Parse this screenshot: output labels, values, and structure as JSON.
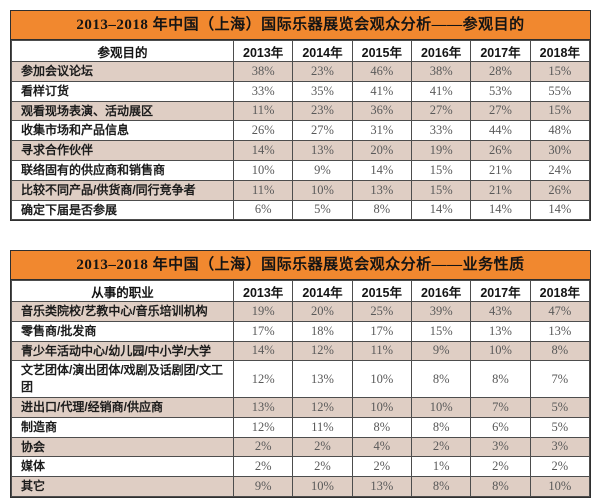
{
  "page": {
    "background": "#ffffff"
  },
  "colors": {
    "title_bar_bg": "#F1882F",
    "stripe_row_bg": "#DFCEC4",
    "grid_border": "#4d4d4d",
    "value_text": "#595959",
    "label_text": "#1c1c1c"
  },
  "chart_data": [
    {
      "type": "table",
      "title": "2013–2018 年中国（上海）国际乐器展览会观众分析——参观目的",
      "row_header": "参观目的",
      "categories": [
        "2013年",
        "2014年",
        "2015年",
        "2016年",
        "2017年",
        "2018年"
      ],
      "unit": "%",
      "series": [
        {
          "name": "参加会议论坛",
          "values": [
            38,
            23,
            46,
            38,
            28,
            15
          ]
        },
        {
          "name": "看样订货",
          "values": [
            33,
            35,
            41,
            41,
            53,
            55
          ]
        },
        {
          "name": "观看现场表演、活动展区",
          "values": [
            11,
            23,
            36,
            27,
            27,
            15
          ]
        },
        {
          "name": "收集市场和产品信息",
          "values": [
            26,
            27,
            31,
            33,
            44,
            48
          ]
        },
        {
          "name": "寻求合作伙伴",
          "values": [
            14,
            13,
            20,
            19,
            26,
            30
          ]
        },
        {
          "name": "联络固有的供应商和销售商",
          "values": [
            10,
            9,
            14,
            15,
            21,
            24
          ]
        },
        {
          "name": "比较不同产品/供货商/同行竞争者",
          "values": [
            11,
            10,
            13,
            15,
            21,
            26
          ]
        },
        {
          "name": "确定下届是否参展",
          "values": [
            6,
            5,
            8,
            14,
            14,
            14
          ]
        }
      ]
    },
    {
      "type": "table",
      "title": "2013–2018 年中国（上海）国际乐器展览会观众分析——业务性质",
      "row_header": "从事的职业",
      "categories": [
        "2013年",
        "2014年",
        "2015年",
        "2016年",
        "2017年",
        "2018年"
      ],
      "unit": "%",
      "series": [
        {
          "name": "音乐类院校/艺教中心/音乐培训机构",
          "values": [
            19,
            20,
            25,
            39,
            43,
            47
          ]
        },
        {
          "name": "零售商/批发商",
          "values": [
            17,
            18,
            17,
            15,
            13,
            13
          ]
        },
        {
          "name": "青少年活动中心/幼儿园/中小学/大学",
          "values": [
            14,
            12,
            11,
            9,
            10,
            8
          ]
        },
        {
          "name": "文艺团体/演出团体/戏剧及话剧团/文工团",
          "values": [
            12,
            13,
            10,
            8,
            8,
            7
          ]
        },
        {
          "name": "进出口/代理/经销商/供应商",
          "values": [
            13,
            12,
            10,
            10,
            7,
            5
          ]
        },
        {
          "name": "制造商",
          "values": [
            12,
            11,
            8,
            8,
            6,
            5
          ]
        },
        {
          "name": "协会",
          "values": [
            2,
            2,
            4,
            2,
            3,
            3
          ]
        },
        {
          "name": "媒体",
          "values": [
            2,
            2,
            2,
            1,
            2,
            2
          ]
        },
        {
          "name": "其它",
          "values": [
            9,
            10,
            13,
            8,
            8,
            10
          ]
        }
      ]
    }
  ]
}
